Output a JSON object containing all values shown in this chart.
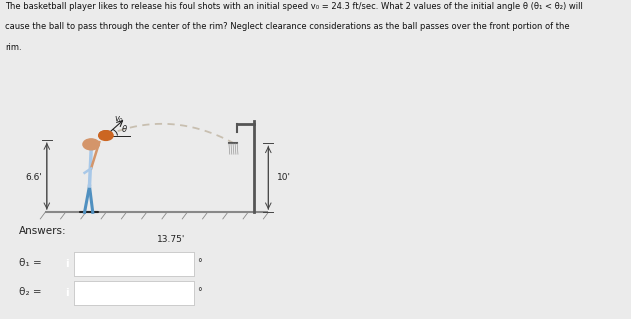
{
  "title_line1": "The basketball player likes to release his foul shots with an initial speed v₀ = 24.3 ft/sec. What 2 values of the initial angle θ (θ₁ < θ₂) will",
  "title_line2": "cause the ball to pass through the center of the rim? Neglect clearance considerations as the ball passes over the front portion of the",
  "title_line3": "rim.",
  "fig_width": 6.31,
  "fig_height": 3.19,
  "background_color": "#ebebeb",
  "diagram_bg": "#ebebeb",
  "ball_arc_color": "#c8bfb0",
  "height_label": "10'",
  "width_label": "13.75'",
  "left_label": "6.6'",
  "answers_label": "Answers:",
  "theta1_label": "θ₁ =",
  "theta2_label": "θ₂ =",
  "box_color": "#2272b5",
  "box_text": "i",
  "input_bg": "#ffffff",
  "input_border": "#cccccc",
  "degree_symbol": "°",
  "dim_color": "#444444",
  "ground_color": "#888888",
  "basket_color": "#555555",
  "player_skin": "#d4956a",
  "player_shirt": "#a8c8e8",
  "player_shorts": "#5090c0",
  "player_dark": "#333333"
}
